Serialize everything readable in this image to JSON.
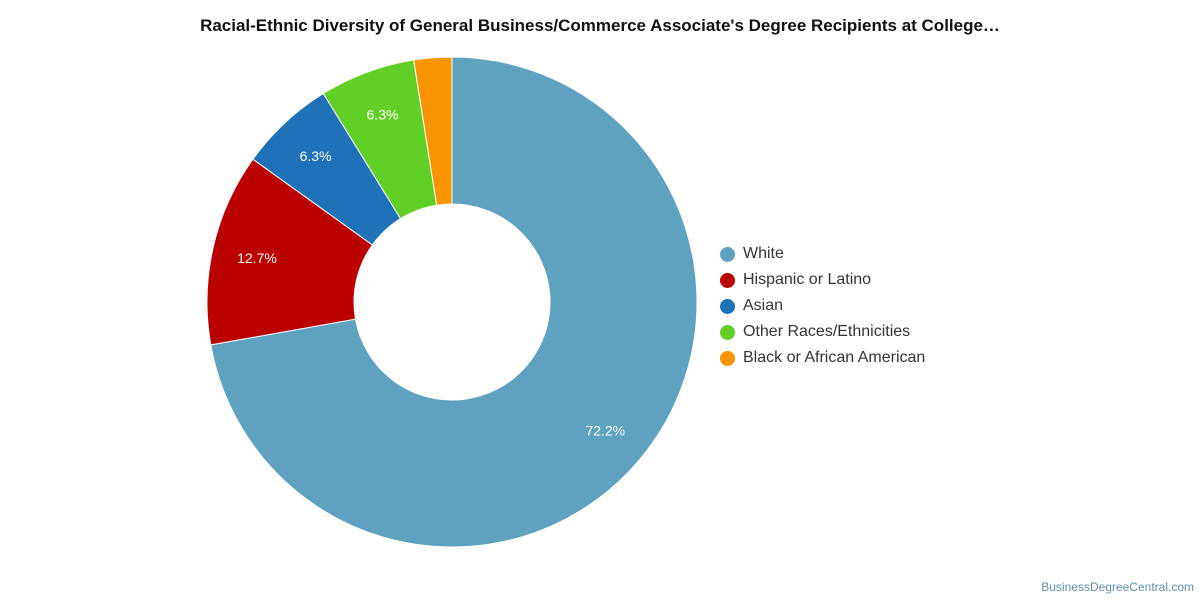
{
  "chart_data": {
    "type": "pie",
    "title": "Racial-Ethnic Diversity of General Business/Commerce Associate's Degree Recipients at College…",
    "legend_position": "right",
    "slices": [
      {
        "name": "White",
        "value": 72.2,
        "label": "72.2%",
        "color": "#5ea2c0"
      },
      {
        "name": "Hispanic or Latino",
        "value": 12.7,
        "label": "12.7%",
        "color": "#bb0000"
      },
      {
        "name": "Asian",
        "value": 6.3,
        "label": "6.3%",
        "color": "#1f72b8"
      },
      {
        "name": "Other Races/Ethnicities",
        "value": 6.3,
        "label": "6.3%",
        "color": "#62cf26"
      },
      {
        "name": "Black or African American",
        "value": 2.5,
        "label": "",
        "color": "#f79400"
      }
    ]
  },
  "footer": {
    "credit": "BusinessDegreeCentral.com"
  }
}
